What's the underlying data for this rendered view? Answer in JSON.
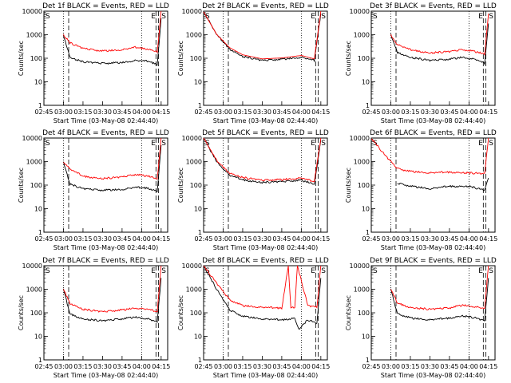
{
  "figure": {
    "xlabel": "Start Time (03-May-08 02:44:40)",
    "ylabel": "Counts/sec",
    "x_tick_labels": [
      "02:45",
      "03:00",
      "03:15",
      "03:30",
      "03:45",
      "04:00",
      "04:15"
    ],
    "y_tick_labels": [
      "1",
      "10",
      "100",
      "1000",
      "10000"
    ]
  },
  "chart_data": [
    {
      "panel": 1,
      "type": "line",
      "title": "Det 1f BLACK = Events, RED = LLD",
      "xlabel": "Start Time (03-May-08 02:44:40)",
      "ylabel": "Counts/sec",
      "yscale": "log",
      "ylim": [
        1,
        10000
      ],
      "xlim": [
        "02:45",
        "04:20"
      ],
      "markers": {
        "S_left": "S",
        "E": "E",
        "S_right": "S"
      },
      "series": [
        {
          "name": "Events",
          "color": "#000000",
          "x": [
            "03:00",
            "03:05",
            "03:15",
            "03:30",
            "03:45",
            "03:55",
            "04:05",
            "04:12",
            "04:15"
          ],
          "values": [
            1000,
            110,
            70,
            60,
            65,
            80,
            75,
            55,
            5000
          ]
        },
        {
          "name": "LLD",
          "color": "#ff0000",
          "x": [
            "03:00",
            "03:05",
            "03:15",
            "03:30",
            "03:45",
            "03:55",
            "04:05",
            "04:12",
            "04:15"
          ],
          "values": [
            1000,
            450,
            260,
            200,
            230,
            290,
            250,
            190,
            10000
          ]
        }
      ]
    },
    {
      "panel": 2,
      "type": "line",
      "title": "Det 2f BLACK = Events, RED = LLD",
      "xlabel": "Start Time (03-May-08 02:44:40)",
      "ylabel": "Counts/sec",
      "yscale": "log",
      "ylim": [
        1,
        10000
      ],
      "xlim": [
        "02:45",
        "04:20"
      ],
      "markers": {
        "S_left": "S",
        "E": "E",
        "S_right": "S"
      },
      "series": [
        {
          "name": "Events",
          "color": "#000000",
          "x": [
            "02:45",
            "02:55",
            "03:05",
            "03:15",
            "03:30",
            "03:45",
            "04:00",
            "04:10",
            "04:15"
          ],
          "values": [
            10000,
            1000,
            250,
            120,
            80,
            90,
            110,
            80,
            8000
          ]
        },
        {
          "name": "LLD",
          "color": "#ff0000",
          "x": [
            "02:45",
            "02:55",
            "03:05",
            "03:15",
            "03:30",
            "03:45",
            "04:00",
            "04:10",
            "04:15"
          ],
          "values": [
            10000,
            1100,
            300,
            150,
            100,
            110,
            140,
            100,
            10000
          ]
        }
      ]
    },
    {
      "panel": 3,
      "type": "line",
      "title": "Det 3f BLACK = Events, RED = LLD",
      "xlabel": "Start Time (03-May-08 02:44:40)",
      "ylabel": "Counts/sec",
      "yscale": "log",
      "ylim": [
        1,
        10000
      ],
      "xlim": [
        "02:45",
        "04:20"
      ],
      "markers": {
        "S_left": "S",
        "E": "E",
        "S_right": "S"
      },
      "series": [
        {
          "name": "Events",
          "color": "#000000",
          "x": [
            "03:00",
            "03:05",
            "03:15",
            "03:30",
            "03:45",
            "03:55",
            "04:05",
            "04:12",
            "04:15"
          ],
          "values": [
            1000,
            180,
            110,
            80,
            90,
            110,
            90,
            60,
            3000
          ]
        },
        {
          "name": "LLD",
          "color": "#ff0000",
          "x": [
            "03:00",
            "03:05",
            "03:15",
            "03:30",
            "03:45",
            "03:55",
            "04:05",
            "04:12",
            "04:15"
          ],
          "values": [
            1000,
            380,
            230,
            170,
            190,
            230,
            190,
            150,
            8000
          ]
        }
      ]
    },
    {
      "panel": 4,
      "type": "line",
      "title": "Det 4f BLACK = Events, RED = LLD",
      "xlabel": "Start Time (03-May-08 02:44:40)",
      "ylabel": "Counts/sec",
      "yscale": "log",
      "ylim": [
        1,
        10000
      ],
      "xlim": [
        "02:45",
        "04:20"
      ],
      "markers": {
        "S_left": "S",
        "E": "E",
        "S_right": "S"
      },
      "series": [
        {
          "name": "Events",
          "color": "#000000",
          "x": [
            "03:00",
            "03:05",
            "03:15",
            "03:30",
            "03:45",
            "03:55",
            "04:05",
            "04:12",
            "04:15"
          ],
          "values": [
            1000,
            110,
            70,
            60,
            65,
            80,
            75,
            55,
            5000
          ]
        },
        {
          "name": "LLD",
          "color": "#ff0000",
          "x": [
            "03:00",
            "03:05",
            "03:15",
            "03:30",
            "03:45",
            "03:55",
            "04:05",
            "04:12",
            "04:15"
          ],
          "values": [
            1000,
            480,
            240,
            190,
            220,
            280,
            240,
            190,
            10000
          ]
        }
      ]
    },
    {
      "panel": 5,
      "type": "line",
      "title": "Det 5f BLACK = Events, RED = LLD",
      "xlabel": "Start Time (03-May-08 02:44:40)",
      "ylabel": "Counts/sec",
      "yscale": "log",
      "ylim": [
        1,
        10000
      ],
      "xlim": [
        "02:45",
        "04:20"
      ],
      "markers": {
        "S_left": "S",
        "E": "E",
        "S_right": "S"
      },
      "series": [
        {
          "name": "Events",
          "color": "#000000",
          "x": [
            "02:45",
            "02:55",
            "03:05",
            "03:15",
            "03:30",
            "03:45",
            "04:00",
            "04:10",
            "04:15"
          ],
          "values": [
            10000,
            1000,
            260,
            170,
            130,
            140,
            160,
            110,
            8000
          ]
        },
        {
          "name": "LLD",
          "color": "#ff0000",
          "x": [
            "02:45",
            "02:55",
            "03:05",
            "03:15",
            "03:30",
            "03:45",
            "04:00",
            "04:10",
            "04:15"
          ],
          "values": [
            10000,
            1100,
            330,
            210,
            160,
            170,
            200,
            140,
            10000
          ]
        }
      ]
    },
    {
      "panel": 6,
      "type": "line",
      "title": "Det 6f BLACK = Events, RED = LLD",
      "xlabel": "Start Time (03-May-08 02:44:40)",
      "ylabel": "Counts/sec",
      "yscale": "log",
      "ylim": [
        1,
        10000
      ],
      "xlim": [
        "02:45",
        "04:20"
      ],
      "markers": {
        "S_left": "S",
        "E": "E",
        "S_right": "S"
      },
      "series": [
        {
          "name": "Events",
          "color": "#000000",
          "x": [
            "03:05",
            "03:15",
            "03:30",
            "03:45",
            "04:00",
            "04:12",
            "04:15"
          ],
          "values": [
            120,
            90,
            70,
            90,
            90,
            60,
            200
          ]
        },
        {
          "name": "LLD",
          "color": "#ff0000",
          "x": [
            "02:45",
            "02:55",
            "03:05",
            "03:15",
            "03:30",
            "03:45",
            "04:00",
            "04:12",
            "04:15"
          ],
          "values": [
            10000,
            2000,
            500,
            380,
            330,
            360,
            330,
            300,
            10000
          ]
        }
      ]
    },
    {
      "panel": 7,
      "type": "line",
      "title": "Det 7f BLACK = Events, RED = LLD",
      "xlabel": "Start Time (03-May-08 02:44:40)",
      "ylabel": "Counts/sec",
      "yscale": "log",
      "ylim": [
        1,
        10000
      ],
      "xlim": [
        "02:45",
        "04:20"
      ],
      "markers": {
        "S_left": "S",
        "E": "E",
        "S_right": "S"
      },
      "series": [
        {
          "name": "Events",
          "color": "#000000",
          "x": [
            "03:00",
            "03:05",
            "03:15",
            "03:30",
            "03:45",
            "03:55",
            "04:05",
            "04:12",
            "04:15"
          ],
          "values": [
            1000,
            90,
            55,
            45,
            55,
            65,
            55,
            40,
            3000
          ]
        },
        {
          "name": "LLD",
          "color": "#ff0000",
          "x": [
            "03:00",
            "03:05",
            "03:15",
            "03:30",
            "03:45",
            "03:55",
            "04:05",
            "04:12",
            "04:15"
          ],
          "values": [
            1000,
            260,
            140,
            110,
            130,
            160,
            140,
            110,
            10000
          ]
        }
      ]
    },
    {
      "panel": 8,
      "type": "line",
      "title": "Det 8f BLACK = Events, RED = LLD",
      "xlabel": "Start Time (03-May-08 02:44:40)",
      "ylabel": "Counts/sec",
      "yscale": "log",
      "ylim": [
        1,
        10000
      ],
      "xlim": [
        "02:45",
        "04:20"
      ],
      "markers": {
        "S_left": "S",
        "E": "E",
        "S_right": "S"
      },
      "series": [
        {
          "name": "Events",
          "color": "#000000",
          "x": [
            "02:45",
            "02:55",
            "03:05",
            "03:15",
            "03:30",
            "03:45",
            "03:55",
            "03:58",
            "04:05",
            "04:12",
            "04:15"
          ],
          "values": [
            10000,
            1000,
            130,
            70,
            55,
            50,
            60,
            20,
            50,
            35,
            3000
          ]
        },
        {
          "name": "LLD",
          "color": "#ff0000",
          "x": [
            "02:45",
            "02:55",
            "03:05",
            "03:15",
            "03:30",
            "03:45",
            "03:50",
            "03:52",
            "03:55",
            "03:57",
            "04:05",
            "04:12",
            "04:15"
          ],
          "values": [
            10000,
            1800,
            350,
            200,
            170,
            160,
            10000,
            170,
            170,
            10000,
            200,
            170,
            10000
          ]
        }
      ]
    },
    {
      "panel": 9,
      "type": "line",
      "title": "Det 9f BLACK = Events, RED = LLD",
      "xlabel": "Start Time (03-May-08 02:44:40)",
      "ylabel": "Counts/sec",
      "yscale": "log",
      "ylim": [
        1,
        10000
      ],
      "xlim": [
        "02:45",
        "04:20"
      ],
      "markers": {
        "S_left": "S",
        "E": "E",
        "S_right": "S"
      },
      "series": [
        {
          "name": "Events",
          "color": "#000000",
          "x": [
            "03:00",
            "03:05",
            "03:15",
            "03:30",
            "03:45",
            "03:55",
            "04:05",
            "04:12",
            "04:15"
          ],
          "values": [
            1000,
            90,
            60,
            50,
            60,
            75,
            60,
            45,
            3000
          ]
        },
        {
          "name": "LLD",
          "color": "#ff0000",
          "x": [
            "03:00",
            "03:05",
            "03:15",
            "03:30",
            "03:45",
            "03:55",
            "04:05",
            "04:12",
            "04:15"
          ],
          "values": [
            1000,
            260,
            170,
            140,
            160,
            210,
            180,
            150,
            10000
          ]
        }
      ]
    }
  ]
}
